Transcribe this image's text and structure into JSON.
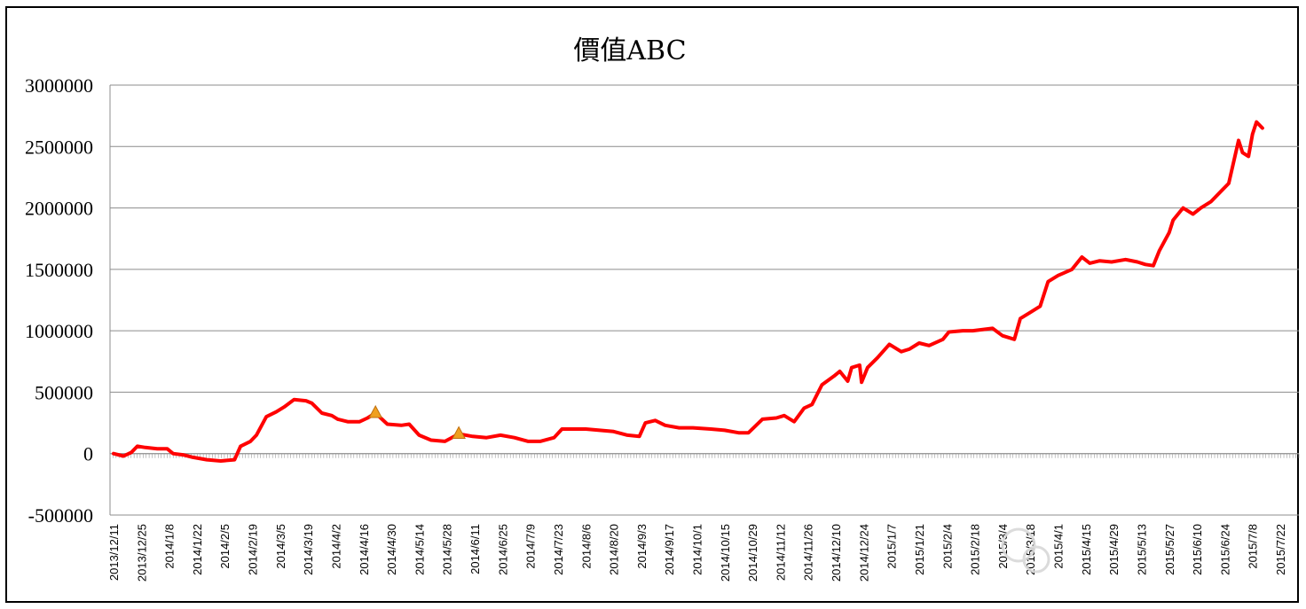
{
  "chart_data": {
    "type": "line",
    "title": "價值ABC",
    "xlabel": "",
    "ylabel": "",
    "ylim": [
      -500000,
      3000000
    ],
    "yticks": [
      -500000,
      0,
      500000,
      1000000,
      1500000,
      2000000,
      2500000,
      3000000
    ],
    "ytick_labels": [
      "-500000",
      "0",
      "500000",
      "1000000",
      "1500000",
      "2000000",
      "2500000",
      "3000000"
    ],
    "grid": true,
    "legend": "none",
    "xtick_labels": [
      "2013/12/11",
      "2013/12/25",
      "2014/1/8",
      "2014/1/22",
      "2014/2/5",
      "2014/2/19",
      "2014/3/5",
      "2014/3/19",
      "2014/4/2",
      "2014/4/16",
      "2014/4/30",
      "2014/5/14",
      "2014/5/28",
      "2014/6/11",
      "2014/6/25",
      "2014/7/9",
      "2014/7/23",
      "2014/8/6",
      "2014/8/20",
      "2014/9/3",
      "2014/9/17",
      "2014/10/1",
      "2014/10/15",
      "2014/10/29",
      "2014/11/12",
      "2014/11/26",
      "2014/12/10",
      "2014/12/24",
      "2015/1/7",
      "2015/1/21",
      "2015/2/4",
      "2015/2/18",
      "2015/3/4",
      "2015/3/18",
      "2015/4/1",
      "2015/4/15",
      "2015/4/29",
      "2015/5/13",
      "2015/5/27",
      "2015/6/10",
      "2015/6/24",
      "2015/7/8",
      "2015/7/22"
    ],
    "series": [
      {
        "color": "#ff0000",
        "points": [
          [
            "2013/12/11",
            0
          ],
          [
            "2013/12/16",
            -20000
          ],
          [
            "2013/12/20",
            10000
          ],
          [
            "2013/12/23",
            60000
          ],
          [
            "2013/12/27",
            50000
          ],
          [
            "2014/1/2",
            40000
          ],
          [
            "2014/1/7",
            40000
          ],
          [
            "2014/1/10",
            0
          ],
          [
            "2014/1/15",
            -10000
          ],
          [
            "2014/1/20",
            -30000
          ],
          [
            "2014/1/27",
            -50000
          ],
          [
            "2014/2/3",
            -60000
          ],
          [
            "2014/2/10",
            -50000
          ],
          [
            "2014/2/13",
            60000
          ],
          [
            "2014/2/18",
            100000
          ],
          [
            "2014/2/21",
            150000
          ],
          [
            "2014/2/26",
            300000
          ],
          [
            "2014/3/3",
            340000
          ],
          [
            "2014/3/7",
            380000
          ],
          [
            "2014/3/12",
            440000
          ],
          [
            "2014/3/18",
            430000
          ],
          [
            "2014/3/21",
            410000
          ],
          [
            "2014/3/26",
            330000
          ],
          [
            "2014/3/31",
            310000
          ],
          [
            "2014/4/3",
            280000
          ],
          [
            "2014/4/8",
            260000
          ],
          [
            "2014/4/14",
            260000
          ],
          [
            "2014/4/18",
            290000
          ],
          [
            "2014/4/22",
            330000
          ],
          [
            "2014/4/28",
            240000
          ],
          [
            "2014/5/5",
            230000
          ],
          [
            "2014/5/9",
            240000
          ],
          [
            "2014/5/14",
            150000
          ],
          [
            "2014/5/20",
            110000
          ],
          [
            "2014/5/27",
            100000
          ],
          [
            "2014/6/3",
            160000
          ],
          [
            "2014/6/10",
            140000
          ],
          [
            "2014/6/17",
            130000
          ],
          [
            "2014/6/24",
            150000
          ],
          [
            "2014/7/1",
            130000
          ],
          [
            "2014/7/8",
            100000
          ],
          [
            "2014/7/14",
            100000
          ],
          [
            "2014/7/21",
            130000
          ],
          [
            "2014/7/25",
            200000
          ],
          [
            "2014/7/31",
            200000
          ],
          [
            "2014/8/6",
            200000
          ],
          [
            "2014/8/13",
            190000
          ],
          [
            "2014/8/20",
            180000
          ],
          [
            "2014/8/27",
            150000
          ],
          [
            "2014/9/2",
            140000
          ],
          [
            "2014/9/5",
            250000
          ],
          [
            "2014/9/10",
            270000
          ],
          [
            "2014/9/15",
            230000
          ],
          [
            "2014/9/22",
            210000
          ],
          [
            "2014/9/29",
            210000
          ],
          [
            "2014/10/8",
            200000
          ],
          [
            "2014/10/15",
            190000
          ],
          [
            "2014/10/22",
            170000
          ],
          [
            "2014/10/27",
            170000
          ],
          [
            "2014/11/3",
            280000
          ],
          [
            "2014/11/10",
            290000
          ],
          [
            "2014/11/14",
            310000
          ],
          [
            "2014/11/19",
            260000
          ],
          [
            "2014/11/24",
            370000
          ],
          [
            "2014/11/28",
            400000
          ],
          [
            "2014/12/3",
            560000
          ],
          [
            "2014/12/9",
            630000
          ],
          [
            "2014/12/12",
            670000
          ],
          [
            "2014/12/16",
            590000
          ],
          [
            "2014/12/18",
            700000
          ],
          [
            "2014/12/22",
            720000
          ],
          [
            "2014/12/23",
            580000
          ],
          [
            "2014/12/26",
            700000
          ],
          [
            "2014/12/31",
            780000
          ],
          [
            "2015/1/6",
            890000
          ],
          [
            "2015/1/12",
            830000
          ],
          [
            "2015/1/16",
            850000
          ],
          [
            "2015/1/21",
            900000
          ],
          [
            "2015/1/26",
            880000
          ],
          [
            "2015/2/2",
            930000
          ],
          [
            "2015/2/5",
            990000
          ],
          [
            "2015/2/12",
            1000000
          ],
          [
            "2015/2/17",
            1000000
          ],
          [
            "2015/2/27",
            1020000
          ],
          [
            "2015/3/4",
            960000
          ],
          [
            "2015/3/10",
            930000
          ],
          [
            "2015/3/13",
            1100000
          ],
          [
            "2015/3/18",
            1150000
          ],
          [
            "2015/3/23",
            1200000
          ],
          [
            "2015/3/27",
            1400000
          ],
          [
            "2015/4/1",
            1450000
          ],
          [
            "2015/4/8",
            1500000
          ],
          [
            "2015/4/13",
            1600000
          ],
          [
            "2015/4/17",
            1550000
          ],
          [
            "2015/4/22",
            1570000
          ],
          [
            "2015/4/28",
            1560000
          ],
          [
            "2015/5/5",
            1580000
          ],
          [
            "2015/5/11",
            1560000
          ],
          [
            "2015/5/15",
            1540000
          ],
          [
            "2015/5/19",
            1530000
          ],
          [
            "2015/5/22",
            1650000
          ],
          [
            "2015/5/27",
            1800000
          ],
          [
            "2015/5/29",
            1900000
          ],
          [
            "2015/6/3",
            2000000
          ],
          [
            "2015/6/8",
            1950000
          ],
          [
            "2015/6/12",
            2000000
          ],
          [
            "2015/6/17",
            2050000
          ],
          [
            "2015/6/23",
            2150000
          ],
          [
            "2015/6/26",
            2200000
          ],
          [
            "2015/7/1",
            2550000
          ],
          [
            "2015/7/3",
            2450000
          ],
          [
            "2015/7/6",
            2420000
          ],
          [
            "2015/7/8",
            2600000
          ],
          [
            "2015/7/10",
            2700000
          ],
          [
            "2015/7/13",
            2650000
          ]
        ]
      }
    ],
    "annotations": [
      {
        "marker": "triangle",
        "color": "#f0a020",
        "x": "2014/4/22",
        "y": 330000
      },
      {
        "marker": "triangle",
        "color": "#f0a020",
        "x": "2014/6/3",
        "y": 160000
      }
    ]
  }
}
